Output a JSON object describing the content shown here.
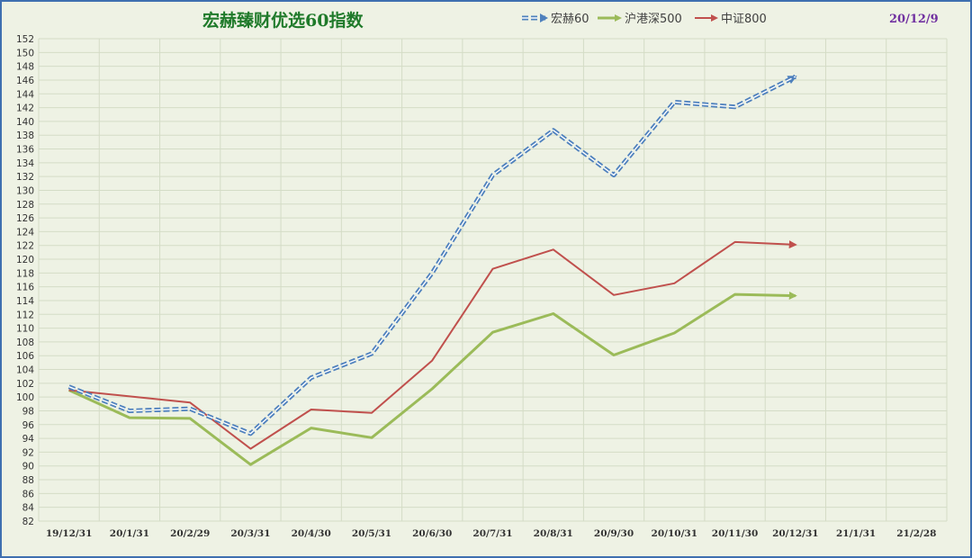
{
  "header": {
    "title": "宏赫臻财优选60指数",
    "date": "20/12/9"
  },
  "colors": {
    "background": "#eef2e4",
    "border": "#3f6fb0",
    "grid": "#d4dcc6",
    "title": "#1f7a2a",
    "date": "#7030a0"
  },
  "chart_data": {
    "type": "line",
    "title": "宏赫臻财优选60指数",
    "xlabel": "",
    "ylabel": "",
    "categories": [
      "19/12/31",
      "20/1/31",
      "20/2/29",
      "20/3/31",
      "20/4/30",
      "20/5/31",
      "20/6/30",
      "20/7/31",
      "20/8/31",
      "20/9/30",
      "20/10/31",
      "20/11/30",
      "20/12/31",
      "21/1/31",
      "21/2/28"
    ],
    "ylim": [
      82,
      152
    ],
    "ytick_step": 2,
    "grid": true,
    "legend_position": "top",
    "series": [
      {
        "name": "宏赫60",
        "color": "#4f81bd",
        "style": "double-dashed",
        "values": [
          101.5,
          98.0,
          98.3,
          94.7,
          102.8,
          106.3,
          118.0,
          132.2,
          138.7,
          132.2,
          142.8,
          142.1,
          146.5,
          null,
          null
        ]
      },
      {
        "name": "沪港深500",
        "color": "#9bbb59",
        "style": "solid",
        "values": [
          101.0,
          97.0,
          96.9,
          90.2,
          95.5,
          94.1,
          101.2,
          109.4,
          112.1,
          106.1,
          109.3,
          114.9,
          114.7,
          null,
          null
        ]
      },
      {
        "name": "中证800",
        "color": "#c0504d",
        "style": "solid",
        "values": [
          101.0,
          100.1,
          99.2,
          92.5,
          98.2,
          97.7,
          105.3,
          118.6,
          121.4,
          114.8,
          116.5,
          122.5,
          122.1,
          null,
          null
        ]
      }
    ]
  }
}
